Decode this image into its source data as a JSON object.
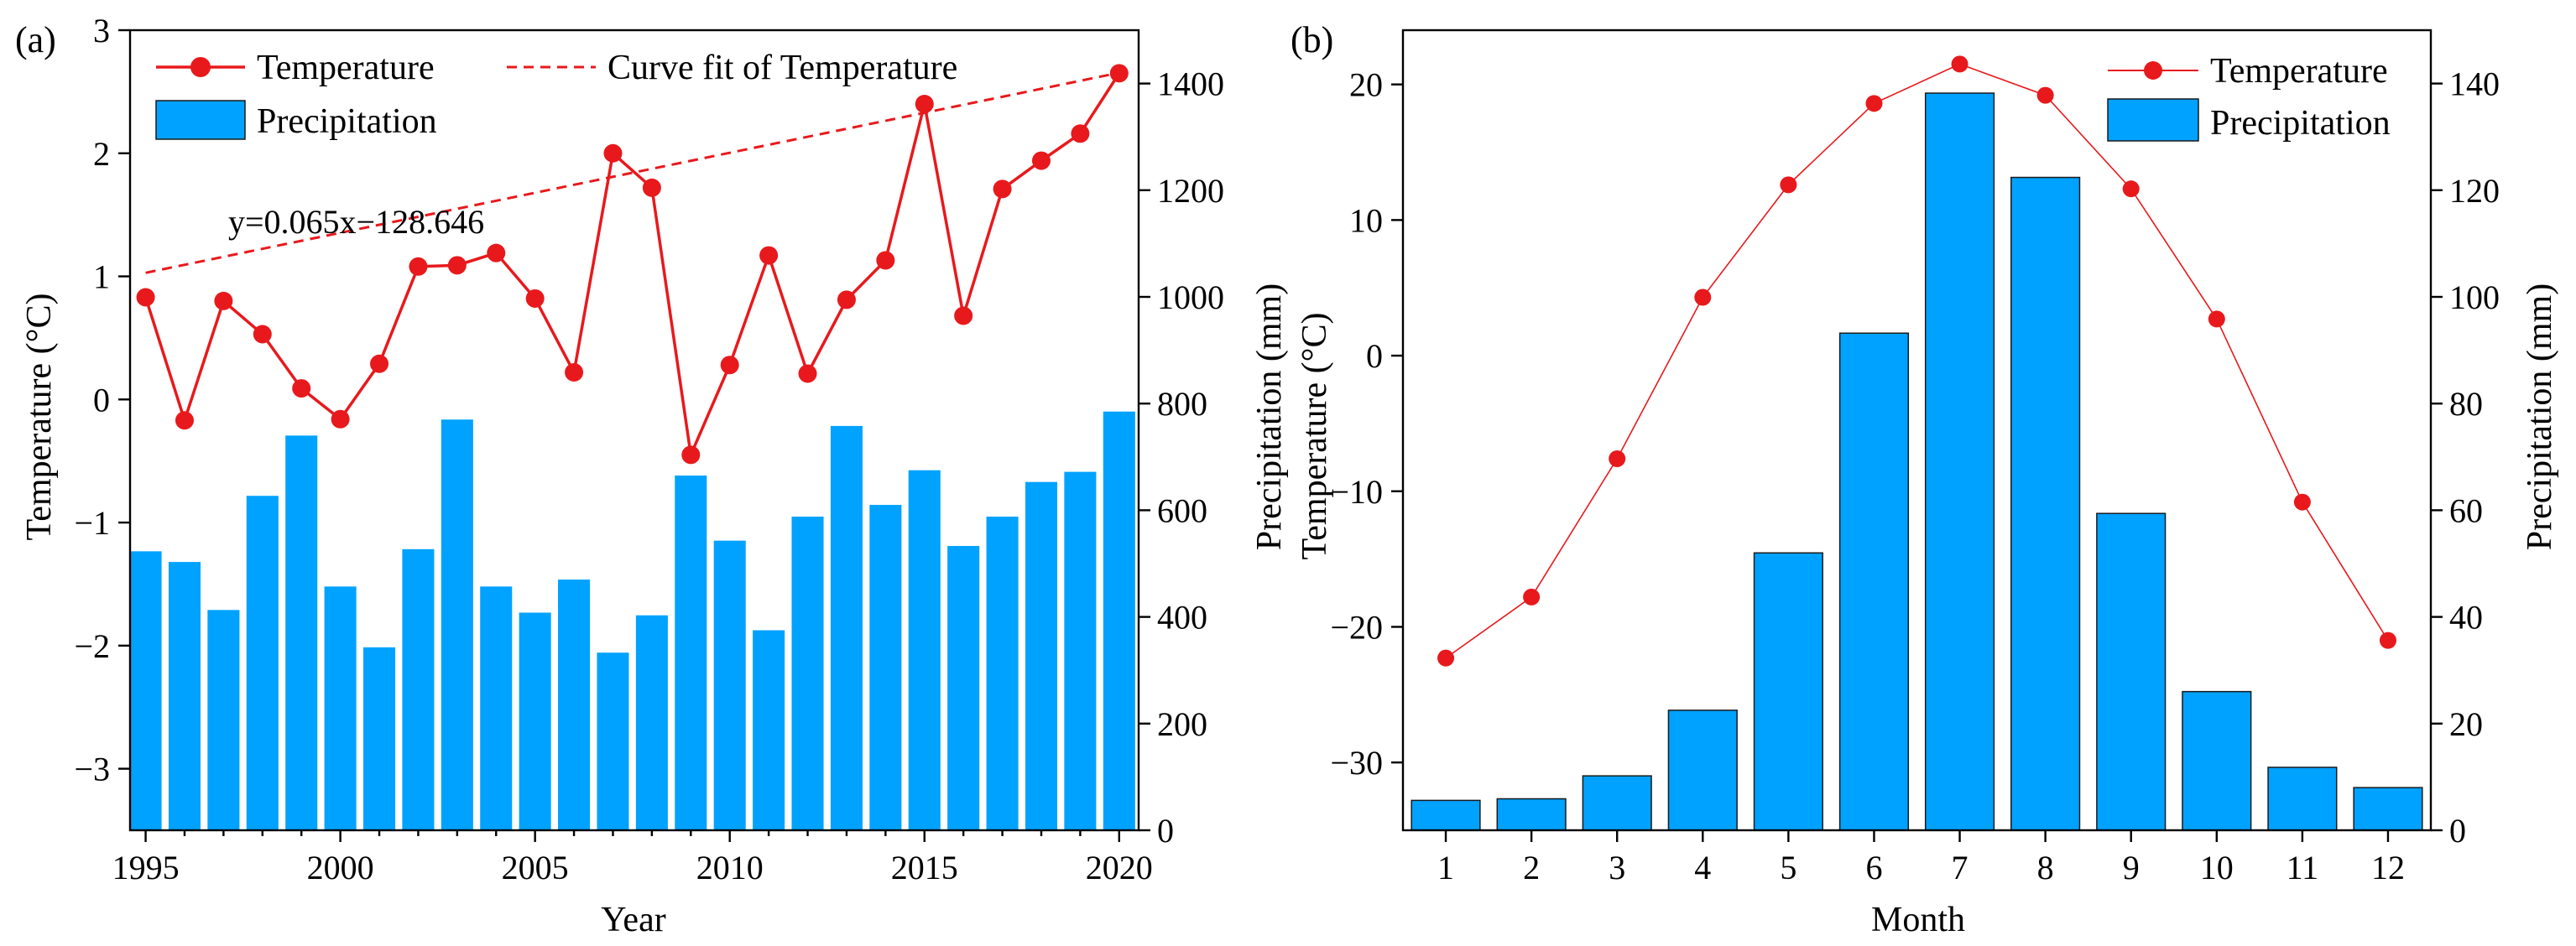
{
  "colors": {
    "temperature": "#e8191c",
    "precipitation": "#00a2ff",
    "bar_edge": "#1a1a1a",
    "axis": "#000000"
  },
  "chart_data": [
    {
      "panel_label": "(a)",
      "type": "bar+line",
      "xlabel": "Year",
      "ylabel_left": "Temperature (°C)",
      "ylabel_right": "Precipitation (mm)",
      "ylim_left": [
        -3.5,
        3
      ],
      "ylim_right": [
        0,
        1500
      ],
      "xlim": [
        1994.6,
        2020.5
      ],
      "yticks_left": [
        -3,
        -2,
        -1,
        0,
        1,
        2,
        3
      ],
      "yticks_left_labels": [
        "−3",
        "−2",
        "−1",
        "0",
        "1",
        "2",
        "3"
      ],
      "yticks_right": [
        0,
        200,
        400,
        600,
        800,
        1000,
        1200,
        1400
      ],
      "yticks_right_labels": [
        "0",
        "200",
        "400",
        "600",
        "800",
        "1000",
        "1200",
        "1400"
      ],
      "xticks": [
        1995,
        2000,
        2005,
        2010,
        2015,
        2020
      ],
      "xticks_labels": [
        "1995",
        "2000",
        "2005",
        "2010",
        "2015",
        "2020"
      ],
      "x": [
        1995,
        1996,
        1997,
        1998,
        1999,
        2000,
        2001,
        2002,
        2003,
        2004,
        2005,
        2006,
        2007,
        2008,
        2009,
        2010,
        2011,
        2012,
        2013,
        2014,
        2015,
        2016,
        2017,
        2018,
        2019,
        2020
      ],
      "series": [
        {
          "name": "Temperature",
          "kind": "line",
          "values": [
            0.83,
            -0.17,
            0.8,
            0.53,
            0.09,
            -0.16,
            0.29,
            1.08,
            1.09,
            1.19,
            0.82,
            0.22,
            2.0,
            1.72,
            -0.45,
            0.28,
            1.17,
            0.21,
            0.81,
            1.13,
            2.4,
            0.68,
            1.71,
            1.94,
            2.16,
            2.65
          ]
        },
        {
          "name": "Precipitation",
          "kind": "bar",
          "values": [
            523,
            503,
            413,
            627,
            740,
            457,
            343,
            527,
            770,
            457,
            408,
            470,
            333,
            403,
            665,
            543,
            375,
            588,
            758,
            610,
            675,
            533,
            588,
            653,
            672,
            785
          ]
        },
        {
          "name": "Curve fit of Temperature",
          "kind": "fit",
          "slope": 0.065,
          "intercept": -128.646
        }
      ],
      "annotation": "y=0.065x−128.646",
      "legend": [
        "Temperature",
        "Curve fit of Temperature",
        "Precipitation"
      ],
      "legend_placement": "top-left"
    },
    {
      "panel_label": "(b)",
      "type": "bar+line",
      "xlabel": "Month",
      "ylabel_left": "Temperature (°C)",
      "ylabel_right": "Precipitation (mm)",
      "ylim_left": [
        -35,
        24
      ],
      "ylim_right": [
        0,
        150
      ],
      "yticks_left": [
        -30,
        -20,
        -10,
        0,
        10,
        20
      ],
      "yticks_left_labels": [
        "−30",
        "−20",
        "−10",
        "0",
        "10",
        "20"
      ],
      "yticks_right": [
        0,
        20,
        40,
        60,
        80,
        100,
        120,
        140
      ],
      "yticks_right_labels": [
        "0",
        "20",
        "40",
        "60",
        "80",
        "100",
        "120",
        "140"
      ],
      "categories": [
        "1",
        "2",
        "3",
        "4",
        "5",
        "6",
        "7",
        "8",
        "9",
        "10",
        "11",
        "12"
      ],
      "series": [
        {
          "name": "Temperature",
          "kind": "line",
          "values": [
            -22.3,
            -17.8,
            -7.6,
            4.3,
            12.6,
            18.6,
            21.5,
            19.2,
            12.3,
            2.7,
            -10.8,
            -21.0
          ]
        },
        {
          "name": "Precipitation",
          "kind": "bar",
          "values": [
            5.6,
            5.9,
            10.2,
            22.5,
            52,
            93.2,
            138.2,
            122.4,
            59.4,
            26,
            11.8,
            8
          ]
        }
      ],
      "legend": [
        "Temperature",
        "Precipitation"
      ],
      "legend_placement": "top-right"
    }
  ]
}
